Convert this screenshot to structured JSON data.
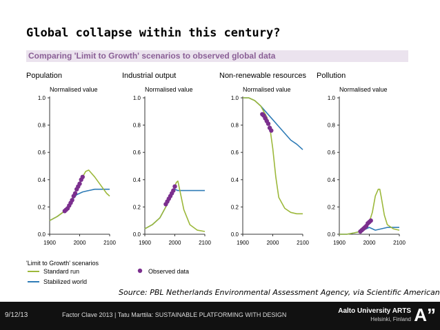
{
  "title": "Global collapse within this century?",
  "subtitle": "Comparing 'Limit to Growth' scenarios to observed global data",
  "source": "Source: PBL Netherlands Environmental Assessment Agency, via Scientific American",
  "footer": {
    "date": "9/12/13",
    "text": "Factor Clave 2013 | Tatu Marttila: SUSTAINABLE PLATFORMING WITH DESIGN",
    "university": "Aalto University ARTS",
    "location": "Helsinki, Finland",
    "logo": "A”"
  },
  "legend": {
    "title": "'Limit to Growth' scenarios",
    "standard": "Standard run",
    "stabilized": "Stabilized world",
    "observed": "Observed data"
  },
  "colors": {
    "standard": "#9cb83a",
    "stabilized": "#2e7bb6",
    "observed": "#7b2f8e",
    "axis": "#333333"
  },
  "chart_data": [
    {
      "type": "line",
      "title": "Population",
      "ylabel": "Normalised value",
      "xlim": [
        1900,
        2100
      ],
      "ylim": [
        0,
        1
      ],
      "xticks": [
        "1900",
        "2000",
        "2100"
      ],
      "yticks": [
        "0.0",
        "0.2",
        "0.4",
        "0.6",
        "0.8",
        "1.0"
      ],
      "series": [
        {
          "name": "Standard run",
          "x": [
            1900,
            1925,
            1950,
            1970,
            1990,
            2000,
            2010,
            2020,
            2030,
            2050,
            2070,
            2090,
            2100
          ],
          "y": [
            0.1,
            0.13,
            0.17,
            0.24,
            0.33,
            0.38,
            0.42,
            0.46,
            0.47,
            0.42,
            0.36,
            0.3,
            0.28
          ]
        },
        {
          "name": "Stabilized world",
          "x": [
            1900,
            1925,
            1950,
            1970,
            1990,
            2010,
            2030,
            2050,
            2070,
            2100
          ],
          "y": [
            0.1,
            0.13,
            0.17,
            0.24,
            0.29,
            0.31,
            0.32,
            0.33,
            0.33,
            0.33
          ]
        },
        {
          "name": "Observed data",
          "x": [
            1950,
            1955,
            1960,
            1965,
            1970,
            1975,
            1980,
            1985,
            1990,
            1995,
            2000,
            2005,
            2010
          ],
          "y": [
            0.17,
            0.18,
            0.19,
            0.21,
            0.23,
            0.25,
            0.28,
            0.3,
            0.33,
            0.35,
            0.37,
            0.4,
            0.42
          ]
        }
      ]
    },
    {
      "type": "line",
      "title": "Industrial output",
      "ylabel": "Normalised value",
      "xlim": [
        1900,
        2100
      ],
      "ylim": [
        0,
        1
      ],
      "xticks": [
        "1900",
        "2000",
        "2100"
      ],
      "yticks": [
        "0.0",
        "0.2",
        "0.4",
        "0.6",
        "0.8",
        "1.0"
      ],
      "series": [
        {
          "name": "Standard run",
          "x": [
            1900,
            1925,
            1950,
            1970,
            1990,
            2000,
            2005,
            2010,
            2015,
            2030,
            2050,
            2075,
            2100
          ],
          "y": [
            0.04,
            0.07,
            0.12,
            0.2,
            0.29,
            0.35,
            0.38,
            0.39,
            0.34,
            0.18,
            0.07,
            0.03,
            0.02
          ]
        },
        {
          "name": "Stabilized world",
          "x": [
            1900,
            1925,
            1950,
            1970,
            1990,
            2000,
            2010,
            2030,
            2060,
            2100
          ],
          "y": [
            0.04,
            0.07,
            0.12,
            0.2,
            0.29,
            0.33,
            0.32,
            0.32,
            0.32,
            0.32
          ]
        },
        {
          "name": "Observed data",
          "x": [
            1970,
            1975,
            1980,
            1985,
            1990,
            1995,
            2000
          ],
          "y": [
            0.22,
            0.24,
            0.26,
            0.28,
            0.3,
            0.32,
            0.35
          ]
        }
      ]
    },
    {
      "type": "line",
      "title": "Non-renewable resources",
      "ylabel": "Normalised value",
      "xlim": [
        1900,
        2100
      ],
      "ylim": [
        0,
        1
      ],
      "xticks": [
        "1900",
        "2000",
        "2100"
      ],
      "yticks": [
        "0.0",
        "0.2",
        "0.4",
        "0.6",
        "0.8",
        "1.0"
      ],
      "series": [
        {
          "name": "Standard run",
          "x": [
            1900,
            1920,
            1940,
            1960,
            1980,
            1990,
            2000,
            2010,
            2020,
            2040,
            2060,
            2080,
            2100
          ],
          "y": [
            1.0,
            1.0,
            0.98,
            0.94,
            0.86,
            0.79,
            0.63,
            0.42,
            0.27,
            0.19,
            0.16,
            0.15,
            0.15
          ]
        },
        {
          "name": "Stabilized world",
          "x": [
            1900,
            1920,
            1940,
            1960,
            1980,
            2000,
            2020,
            2040,
            2060,
            2080,
            2100
          ],
          "y": [
            1.0,
            1.0,
            0.98,
            0.94,
            0.89,
            0.84,
            0.79,
            0.74,
            0.69,
            0.66,
            0.62
          ]
        },
        {
          "name": "Observed data",
          "x": [
            1965,
            1970,
            1975,
            1980,
            1985,
            1990,
            1995
          ],
          "y": [
            0.88,
            0.87,
            0.85,
            0.83,
            0.81,
            0.78,
            0.76
          ]
        }
      ]
    },
    {
      "type": "line",
      "title": "Pollution",
      "ylabel": "Normalised value",
      "xlim": [
        1900,
        2100
      ],
      "ylim": [
        0,
        1
      ],
      "xticks": [
        "1900",
        "2000",
        "2100"
      ],
      "yticks": [
        "0.0",
        "0.2",
        "0.4",
        "0.6",
        "0.8",
        "1.0"
      ],
      "series": [
        {
          "name": "Standard run",
          "x": [
            1900,
            1925,
            1950,
            1970,
            1990,
            2000,
            2010,
            2020,
            2030,
            2035,
            2040,
            2050,
            2060,
            2080,
            2100
          ],
          "y": [
            0.0,
            0.0,
            0.01,
            0.02,
            0.05,
            0.09,
            0.16,
            0.28,
            0.33,
            0.33,
            0.27,
            0.14,
            0.07,
            0.04,
            0.03
          ]
        },
        {
          "name": "Stabilized world",
          "x": [
            1900,
            1925,
            1950,
            1970,
            1990,
            2000,
            2010,
            2020,
            2040,
            2060,
            2100
          ],
          "y": [
            0.0,
            0.0,
            0.01,
            0.02,
            0.04,
            0.05,
            0.04,
            0.03,
            0.04,
            0.05,
            0.05
          ]
        },
        {
          "name": "Observed data",
          "x": [
            1970,
            1975,
            1980,
            1985,
            1990,
            1995,
            2000,
            2005
          ],
          "y": [
            0.02,
            0.03,
            0.04,
            0.05,
            0.06,
            0.08,
            0.09,
            0.1
          ]
        }
      ]
    }
  ]
}
